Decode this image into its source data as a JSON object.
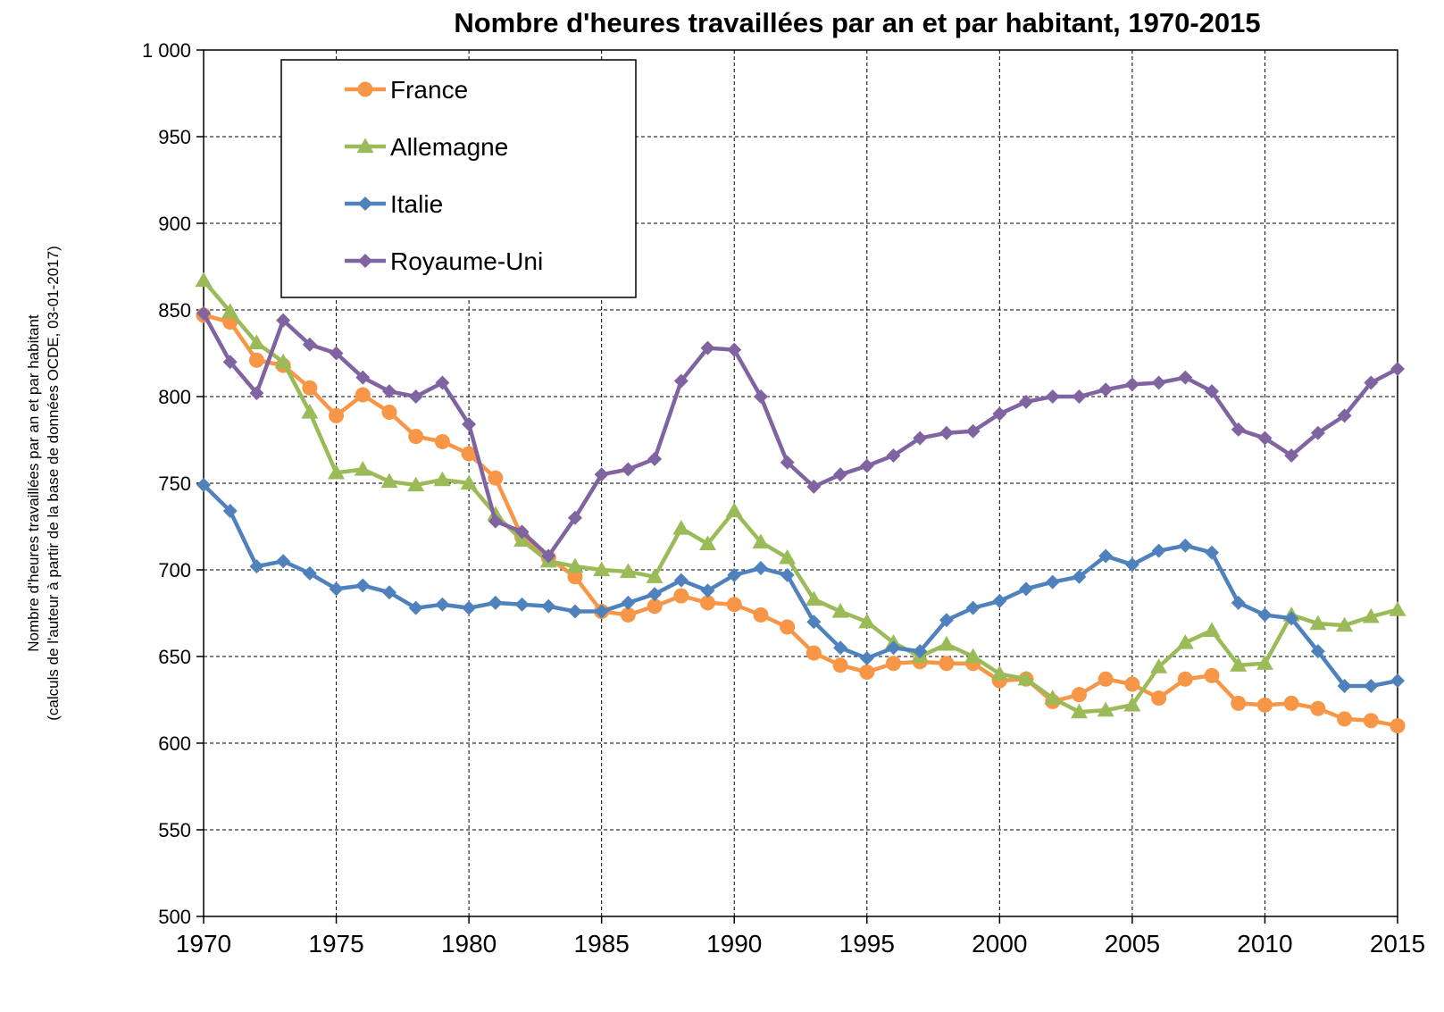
{
  "chart_data": {
    "type": "line",
    "title": "Nombre d'heures travaillées par an et par habitant, 1970-2015",
    "ylabel_line1": "Nombre d'heures travaillées par an et par habitant",
    "ylabel_line2": "(calculs de l'auteur à partir de la base de données OCDE, 03-01-2017)",
    "xlabel": "",
    "x": [
      1970,
      1971,
      1972,
      1973,
      1974,
      1975,
      1976,
      1977,
      1978,
      1979,
      1980,
      1981,
      1982,
      1983,
      1984,
      1985,
      1986,
      1987,
      1988,
      1989,
      1990,
      1991,
      1992,
      1993,
      1994,
      1995,
      1996,
      1997,
      1998,
      1999,
      2000,
      2001,
      2002,
      2003,
      2004,
      2005,
      2006,
      2007,
      2008,
      2009,
      2010,
      2011,
      2012,
      2013,
      2014,
      2015
    ],
    "xlim": [
      1970,
      2015
    ],
    "xticks": [
      "1970",
      "1975",
      "1980",
      "1985",
      "1990",
      "1995",
      "2000",
      "2005",
      "2010",
      "2015"
    ],
    "ylim": [
      500,
      1000
    ],
    "yticks": [
      "500",
      "550",
      "600",
      "650",
      "700",
      "750",
      "800",
      "850",
      "900",
      "950",
      "1 000"
    ],
    "grid": true,
    "legend_position": "top-left",
    "series": [
      {
        "name": "France",
        "color": "#F79646",
        "marker": "circle",
        "values": [
          847,
          843,
          821,
          818,
          805,
          789,
          801,
          791,
          777,
          774,
          767,
          753,
          719,
          707,
          696,
          676,
          674,
          679,
          685,
          681,
          680,
          674,
          667,
          652,
          645,
          641,
          646,
          647,
          646,
          646,
          636,
          637,
          624,
          628,
          637,
          634,
          626,
          637,
          639,
          623,
          622,
          623,
          620,
          614,
          613,
          610
        ]
      },
      {
        "name": "Allemagne",
        "color": "#9BBB59",
        "marker": "triangle",
        "values": [
          867,
          849,
          831,
          820,
          791,
          756,
          758,
          751,
          749,
          752,
          750,
          732,
          717,
          705,
          702,
          700,
          699,
          696,
          724,
          715,
          734,
          716,
          707,
          683,
          676,
          670,
          658,
          650,
          657,
          650,
          640,
          637,
          626,
          618,
          619,
          622,
          644,
          658,
          665,
          645,
          646,
          674,
          669,
          668,
          673,
          677
        ]
      },
      {
        "name": "Italie",
        "color": "#4F81BD",
        "marker": "diamond",
        "values": [
          749,
          734,
          702,
          705,
          698,
          689,
          691,
          687,
          678,
          680,
          678,
          681,
          680,
          679,
          676,
          676,
          681,
          686,
          694,
          688,
          697,
          701,
          697,
          670,
          655,
          649,
          655,
          653,
          671,
          678,
          682,
          689,
          693,
          696,
          708,
          703,
          711,
          714,
          710,
          681,
          674,
          672,
          653,
          633,
          633,
          636
        ]
      },
      {
        "name": "Royaume-Uni",
        "color": "#8064A2",
        "marker": "diamond",
        "values": [
          848,
          820,
          802,
          844,
          830,
          825,
          811,
          803,
          800,
          808,
          784,
          728,
          722,
          708,
          730,
          755,
          758,
          764,
          809,
          828,
          827,
          800,
          762,
          748,
          755,
          760,
          766,
          776,
          779,
          780,
          790,
          797,
          800,
          800,
          804,
          807,
          808,
          811,
          803,
          781,
          776,
          766,
          779,
          789,
          808,
          816
        ]
      }
    ]
  }
}
